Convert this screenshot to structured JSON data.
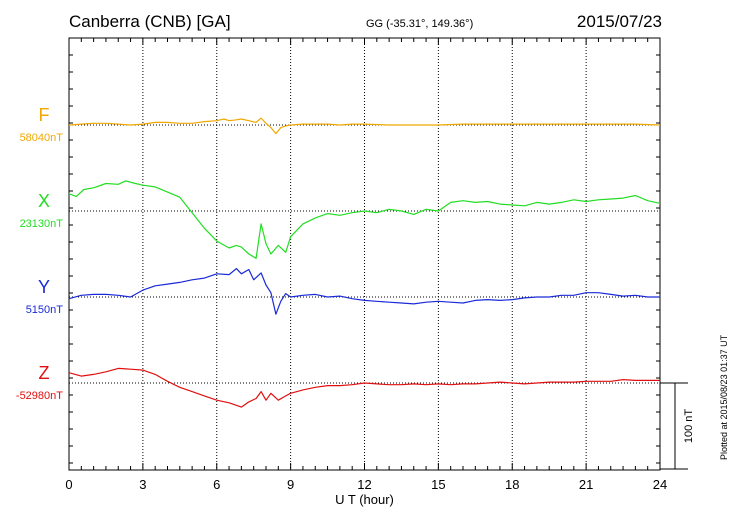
{
  "header": {
    "station": "Canberra (CNB)  [GA]",
    "coordinates": "GG (-35.31°, 149.36°)",
    "date": "2015/07/23"
  },
  "side_note": "Plotted at 2015/08/23 01:37 UT",
  "chart_data": {
    "type": "line",
    "xlabel": "U T (hour)",
    "xlim": [
      0,
      24
    ],
    "xticks": [
      "0",
      "3",
      "6",
      "9",
      "12",
      "15",
      "18",
      "21",
      "24"
    ],
    "grid": true,
    "scale_bar": {
      "label": "100 nT",
      "value": 100
    },
    "series": [
      {
        "name": "F",
        "baseline_label": "58040nT",
        "baseline": 58040,
        "color": "#f0a800",
        "points": [
          [
            0,
            0
          ],
          [
            0.5,
            1
          ],
          [
            1,
            2
          ],
          [
            1.5,
            2
          ],
          [
            2,
            1
          ],
          [
            2.5,
            0
          ],
          [
            3,
            1
          ],
          [
            3.5,
            3
          ],
          [
            4,
            3
          ],
          [
            4.5,
            2
          ],
          [
            5,
            2
          ],
          [
            5.5,
            4
          ],
          [
            6,
            5
          ],
          [
            6.3,
            7
          ],
          [
            6.5,
            5
          ],
          [
            6.8,
            6
          ],
          [
            7,
            7
          ],
          [
            7.3,
            5
          ],
          [
            7.6,
            3
          ],
          [
            7.8,
            8
          ],
          [
            8,
            2
          ],
          [
            8.2,
            -3
          ],
          [
            8.4,
            -10
          ],
          [
            8.6,
            -3
          ],
          [
            8.8,
            -1
          ],
          [
            9,
            0
          ],
          [
            9.5,
            1
          ],
          [
            10,
            1
          ],
          [
            10.5,
            1
          ],
          [
            11,
            0
          ],
          [
            11.5,
            1
          ],
          [
            12,
            1
          ],
          [
            13,
            0
          ],
          [
            14,
            0
          ],
          [
            15,
            0
          ],
          [
            16,
            1
          ],
          [
            17,
            1
          ],
          [
            18,
            1
          ],
          [
            19,
            1
          ],
          [
            20,
            1
          ],
          [
            21,
            1
          ],
          [
            22,
            1
          ],
          [
            23,
            1
          ],
          [
            24,
            0
          ]
        ]
      },
      {
        "name": "X",
        "baseline_label": "23130nT",
        "baseline": 23130,
        "color": "#22dd22",
        "points": [
          [
            0,
            20
          ],
          [
            0.3,
            17
          ],
          [
            0.6,
            25
          ],
          [
            1,
            27
          ],
          [
            1.5,
            32
          ],
          [
            2,
            31
          ],
          [
            2.3,
            35
          ],
          [
            2.7,
            32
          ],
          [
            3,
            30
          ],
          [
            3.5,
            28
          ],
          [
            4,
            22
          ],
          [
            4.5,
            16
          ],
          [
            5,
            -2
          ],
          [
            5.5,
            -20
          ],
          [
            6,
            -35
          ],
          [
            6.5,
            -43
          ],
          [
            6.8,
            -40
          ],
          [
            7,
            -42
          ],
          [
            7.3,
            -50
          ],
          [
            7.6,
            -55
          ],
          [
            7.8,
            -15
          ],
          [
            8,
            -38
          ],
          [
            8.2,
            -50
          ],
          [
            8.5,
            -40
          ],
          [
            8.8,
            -48
          ],
          [
            9,
            -30
          ],
          [
            9.5,
            -15
          ],
          [
            10,
            -8
          ],
          [
            10.5,
            -3
          ],
          [
            11,
            -5
          ],
          [
            11.5,
            -2
          ],
          [
            12,
            0
          ],
          [
            12.5,
            -2
          ],
          [
            13,
            2
          ],
          [
            13.5,
            0
          ],
          [
            14,
            -4
          ],
          [
            14.5,
            2
          ],
          [
            15,
            0
          ],
          [
            15.5,
            10
          ],
          [
            16,
            12
          ],
          [
            16.5,
            10
          ],
          [
            17,
            11
          ],
          [
            17.5,
            8
          ],
          [
            18,
            7
          ],
          [
            18.5,
            6
          ],
          [
            19,
            10
          ],
          [
            19.5,
            8
          ],
          [
            20,
            10
          ],
          [
            20.5,
            13
          ],
          [
            21,
            11
          ],
          [
            21.5,
            13
          ],
          [
            22,
            14
          ],
          [
            22.5,
            15
          ],
          [
            23,
            18
          ],
          [
            23.5,
            12
          ],
          [
            24,
            9
          ]
        ]
      },
      {
        "name": "Y",
        "baseline_label": "5150nT",
        "baseline": 5150,
        "color": "#1a2ad8",
        "points": [
          [
            0,
            -2
          ],
          [
            0.5,
            2
          ],
          [
            1,
            3
          ],
          [
            1.5,
            3
          ],
          [
            2,
            2
          ],
          [
            2.5,
            0
          ],
          [
            3,
            8
          ],
          [
            3.5,
            13
          ],
          [
            4,
            15
          ],
          [
            4.5,
            17
          ],
          [
            5,
            20
          ],
          [
            5.5,
            22
          ],
          [
            6,
            27
          ],
          [
            6.5,
            26
          ],
          [
            6.8,
            33
          ],
          [
            7,
            27
          ],
          [
            7.3,
            32
          ],
          [
            7.5,
            20
          ],
          [
            7.8,
            28
          ],
          [
            8,
            14
          ],
          [
            8.2,
            5
          ],
          [
            8.4,
            -20
          ],
          [
            8.6,
            -5
          ],
          [
            8.8,
            4
          ],
          [
            9,
            0
          ],
          [
            9.5,
            2
          ],
          [
            10,
            3
          ],
          [
            10.5,
            0
          ],
          [
            11,
            1
          ],
          [
            11.5,
            -2
          ],
          [
            12,
            -4
          ],
          [
            12.5,
            -5
          ],
          [
            13,
            -6
          ],
          [
            13.5,
            -7
          ],
          [
            14,
            -8
          ],
          [
            14.5,
            -6
          ],
          [
            15,
            -5
          ],
          [
            15.5,
            -6
          ],
          [
            16,
            -7
          ],
          [
            16.5,
            -4
          ],
          [
            17,
            -3
          ],
          [
            17.5,
            -4
          ],
          [
            18,
            -3
          ],
          [
            18.5,
            -1
          ],
          [
            19,
            0
          ],
          [
            19.5,
            0
          ],
          [
            20,
            2
          ],
          [
            20.5,
            2
          ],
          [
            21,
            5
          ],
          [
            21.5,
            5
          ],
          [
            22,
            3
          ],
          [
            22.5,
            1
          ],
          [
            23,
            2
          ],
          [
            23.5,
            0
          ],
          [
            24,
            0
          ]
        ]
      },
      {
        "name": "Z",
        "baseline_label": "-52980nT",
        "baseline": -52980,
        "color": "#e01010",
        "points": [
          [
            0,
            12
          ],
          [
            0.5,
            8
          ],
          [
            1,
            10
          ],
          [
            1.5,
            13
          ],
          [
            2,
            17
          ],
          [
            2.5,
            16
          ],
          [
            3,
            15
          ],
          [
            3.5,
            10
          ],
          [
            4,
            2
          ],
          [
            4.5,
            -5
          ],
          [
            5,
            -10
          ],
          [
            5.5,
            -15
          ],
          [
            6,
            -20
          ],
          [
            6.5,
            -23
          ],
          [
            7,
            -28
          ],
          [
            7.3,
            -22
          ],
          [
            7.6,
            -18
          ],
          [
            7.8,
            -10
          ],
          [
            8,
            -20
          ],
          [
            8.2,
            -12
          ],
          [
            8.5,
            -20
          ],
          [
            8.8,
            -15
          ],
          [
            9,
            -12
          ],
          [
            9.5,
            -8
          ],
          [
            10,
            -5
          ],
          [
            10.5,
            -3
          ],
          [
            11,
            -3
          ],
          [
            11.5,
            -2
          ],
          [
            12,
            0
          ],
          [
            12.5,
            -1
          ],
          [
            13,
            -2
          ],
          [
            13.5,
            -2
          ],
          [
            14,
            -1
          ],
          [
            14.5,
            -2
          ],
          [
            15,
            -1
          ],
          [
            15.5,
            -2
          ],
          [
            16,
            -1
          ],
          [
            16.5,
            -1
          ],
          [
            17,
            0
          ],
          [
            17.5,
            1
          ],
          [
            18,
            0
          ],
          [
            18.5,
            -1
          ],
          [
            19,
            0
          ],
          [
            19.5,
            1
          ],
          [
            20,
            1
          ],
          [
            20.5,
            1
          ],
          [
            21,
            2
          ],
          [
            21.5,
            2
          ],
          [
            22,
            2
          ],
          [
            22.5,
            4
          ],
          [
            23,
            3
          ],
          [
            23.5,
            3
          ],
          [
            24,
            3
          ]
        ]
      }
    ]
  }
}
